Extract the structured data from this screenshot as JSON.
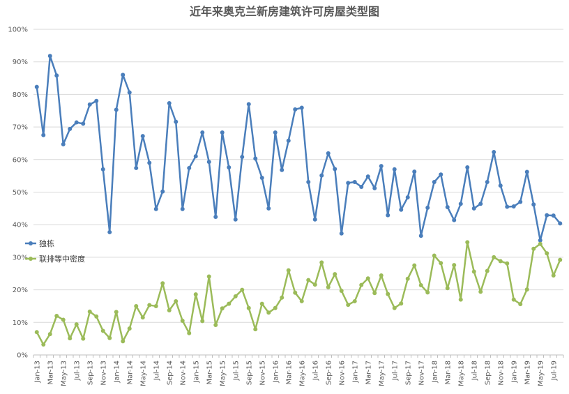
{
  "chart_data": {
    "type": "line",
    "title": "近年来奥克兰新房建筑许可房屋类型图",
    "xlabel": "",
    "ylabel": "",
    "ylim": [
      0,
      100
    ],
    "y_ticks": [
      "0%",
      "10%",
      "20%",
      "30%",
      "40%",
      "50%",
      "60%",
      "70%",
      "80%",
      "90%",
      "100%"
    ],
    "grid": true,
    "legend_position": "left-center",
    "x": [
      "Jan-13",
      "Feb-13",
      "Mar-13",
      "Apr-13",
      "May-13",
      "Jun-13",
      "Jul-13",
      "Aug-13",
      "Sep-13",
      "Oct-13",
      "Nov-13",
      "Dec-13",
      "Jan-14",
      "Feb-14",
      "Mar-14",
      "Apr-14",
      "May-14",
      "Jun-14",
      "Jul-14",
      "Aug-14",
      "Sep-14",
      "Oct-14",
      "Nov-14",
      "Dec-14",
      "Jan-15",
      "Feb-15",
      "Mar-15",
      "Apr-15",
      "May-15",
      "Jun-15",
      "Jul-15",
      "Aug-15",
      "Sep-15",
      "Oct-15",
      "Nov-15",
      "Dec-15",
      "Jan-16",
      "Feb-16",
      "Mar-16",
      "Apr-16",
      "May-16",
      "Jun-16",
      "Jul-16",
      "Aug-16",
      "Sep-16",
      "Oct-16",
      "Nov-16",
      "Dec-16",
      "Jan-17",
      "Feb-17",
      "Mar-17",
      "Apr-17",
      "May-17",
      "Jun-17",
      "Jul-17",
      "Aug-17",
      "Sep-17",
      "Oct-17",
      "Nov-17",
      "Dec-17",
      "Jan-18",
      "Feb-18",
      "Mar-18",
      "Apr-18",
      "May-18",
      "Jun-18",
      "Jul-18",
      "Aug-18",
      "Sep-18",
      "Oct-18",
      "Nov-18",
      "Dec-18",
      "Jan-19",
      "Feb-19",
      "Mar-19",
      "Apr-19",
      "May-19",
      "Jun-19",
      "Jul-19",
      "Aug-19"
    ],
    "x_tick_labels": [
      "Jan-13",
      "Mar-13",
      "May-13",
      "Jul-13",
      "Sep-13",
      "Nov-13",
      "Jan-14",
      "Mar-14",
      "May-14",
      "Jul-14",
      "Sep-14",
      "Nov-14",
      "Jan-15",
      "Mar-15",
      "May-15",
      "Jul-15",
      "Sep-15",
      "Nov-15",
      "Jan-16",
      "Mar-16",
      "May-16",
      "Jul-16",
      "Sep-16",
      "Nov-16",
      "Jan-17",
      "Mar-17",
      "May-17",
      "Jul-17",
      "Sep-17",
      "Nov-17",
      "Jan-18",
      "Mar-18",
      "May-18",
      "Jul-18",
      "Sep-18",
      "Nov-18",
      "Jan-19",
      "Mar-19",
      "May-19",
      "Jul-19"
    ],
    "series": [
      {
        "name": "独栋",
        "color": "#4a7ebb",
        "values": [
          82.3,
          67.5,
          91.8,
          85.8,
          64.7,
          69.4,
          71.4,
          71.0,
          76.9,
          78.0,
          57.0,
          37.7,
          75.3,
          86.0,
          80.6,
          57.4,
          67.2,
          59.0,
          44.8,
          50.2,
          77.3,
          71.6,
          44.8,
          57.4,
          61.0,
          68.3,
          59.3,
          42.4,
          68.3,
          57.6,
          41.6,
          60.8,
          77.0,
          60.3,
          54.4,
          45.0,
          68.3,
          56.8,
          65.8,
          75.4,
          75.9,
          53.1,
          41.6,
          55.1,
          61.9,
          57.1,
          37.3,
          52.8,
          53.1,
          51.6,
          54.8,
          51.2,
          58.0,
          42.9,
          57.0,
          44.6,
          48.4,
          56.3,
          36.6,
          45.2,
          53.1,
          55.4,
          45.4,
          41.4,
          46.4,
          57.6,
          45.0,
          46.4,
          53.1,
          62.3,
          52.0,
          45.5,
          45.6,
          47.0,
          56.2,
          46.2,
          35.2,
          42.9,
          42.8,
          40.4
        ]
      },
      {
        "name": "联排等中密度",
        "color": "#9bbb59",
        "values": [
          7.0,
          3.2,
          6.4,
          12.0,
          10.8,
          5.1,
          9.4,
          5.0,
          13.3,
          11.8,
          7.4,
          5.2,
          13.2,
          4.2,
          8.1,
          15.0,
          11.5,
          15.3,
          15.0,
          22.0,
          13.7,
          16.5,
          10.5,
          6.7,
          18.6,
          10.4,
          24.1,
          9.2,
          14.3,
          15.7,
          18.0,
          20.0,
          14.4,
          7.9,
          15.7,
          13.0,
          14.4,
          17.6,
          26.0,
          19.1,
          16.5,
          23.0,
          21.6,
          28.4,
          20.8,
          24.8,
          19.7,
          15.4,
          16.5,
          21.5,
          23.5,
          19.0,
          24.4,
          18.7,
          14.4,
          15.8,
          23.4,
          27.5,
          21.4,
          19.2,
          30.5,
          28.2,
          20.5,
          27.6,
          17.0,
          34.6,
          25.6,
          19.4,
          25.8,
          30.0,
          28.8,
          28.1,
          17.0,
          15.6,
          20.1,
          32.6,
          34.1,
          31.2,
          24.4,
          29.2
        ]
      }
    ]
  },
  "legend": {
    "series0_label": "独栋",
    "series1_label": "联排等中密度"
  }
}
